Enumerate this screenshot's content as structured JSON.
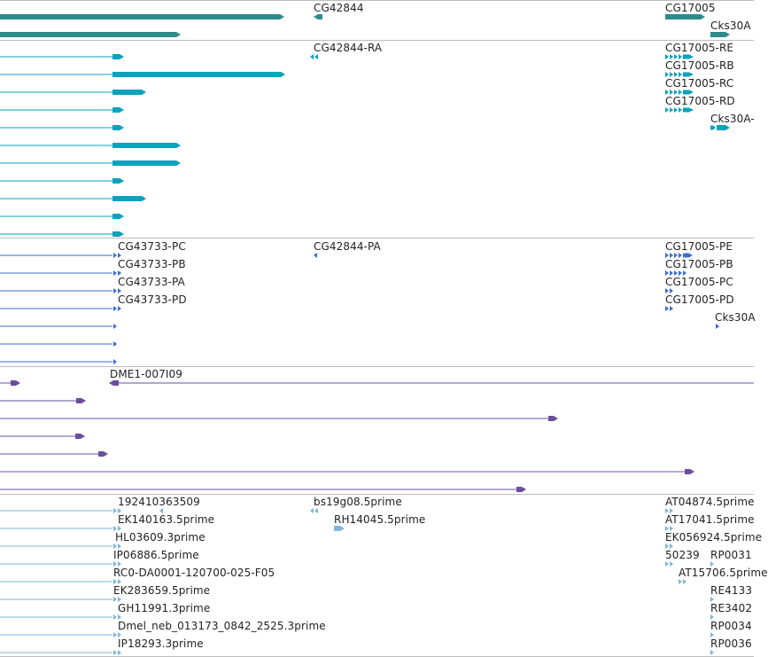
{
  "browser": {
    "tracks": [
      {
        "id": "gene",
        "color": "#2e8b8b",
        "labels": [
          {
            "key": "cg42844",
            "text": "CG42844"
          },
          {
            "key": "cg17005",
            "text": "CG17005"
          },
          {
            "key": "cks30a",
            "text": "Cks30A"
          }
        ]
      },
      {
        "id": "transcript",
        "color": "#0aa2bd",
        "labels": [
          {
            "key": "cg42844_ra",
            "text": "CG42844-RA"
          },
          {
            "key": "cg17005_re",
            "text": "CG17005-RE"
          },
          {
            "key": "cg17005_rb",
            "text": "CG17005-RB"
          },
          {
            "key": "cg17005_rc",
            "text": "CG17005-RC"
          },
          {
            "key": "cg17005_rd",
            "text": "CG17005-RD"
          },
          {
            "key": "cks30a_r",
            "text": "Cks30A-"
          }
        ]
      },
      {
        "id": "protein",
        "color": "#3a6ccf",
        "labels": [
          {
            "key": "cg43733_pc",
            "text": "CG43733-PC"
          },
          {
            "key": "cg42844_pa",
            "text": "CG42844-PA"
          },
          {
            "key": "cg17005_pe",
            "text": "CG17005-PE"
          },
          {
            "key": "cg43733_pb",
            "text": "CG43733-PB"
          },
          {
            "key": "cg17005_pb",
            "text": "CG17005-PB"
          },
          {
            "key": "cg43733_pa",
            "text": "CG43733-PA"
          },
          {
            "key": "cg17005_pc",
            "text": "CG17005-PC"
          },
          {
            "key": "cg43733_pd",
            "text": "CG43733-PD"
          },
          {
            "key": "cg17005_pd",
            "text": "CG17005-PD"
          },
          {
            "key": "cks30a_p",
            "text": "Cks30A"
          }
        ]
      },
      {
        "id": "clone",
        "color": "#6a4fa0",
        "labels": [
          {
            "key": "dme1",
            "text": "DME1-007I09"
          }
        ]
      },
      {
        "id": "est",
        "color": "#7fb6d8",
        "labels": [
          {
            "key": "e1",
            "text": "192410363509"
          },
          {
            "key": "e2",
            "text": "bs19g08.5prime"
          },
          {
            "key": "e3",
            "text": "AT04874.5prime"
          },
          {
            "key": "e4",
            "text": "EK140163.5prime"
          },
          {
            "key": "e5",
            "text": "RH14045.5prime"
          },
          {
            "key": "e6",
            "text": "AT17041.5prime"
          },
          {
            "key": "e7",
            "text": "HL03609.3prime"
          },
          {
            "key": "e8",
            "text": "EK056924.5prime"
          },
          {
            "key": "e9",
            "text": "IP06886.5prime"
          },
          {
            "key": "e10",
            "text": "50239"
          },
          {
            "key": "e11",
            "text": "RP0031"
          },
          {
            "key": "e12",
            "text": "RC0-DA0001-120700-025-F05"
          },
          {
            "key": "e13",
            "text": "AT15706.5prime"
          },
          {
            "key": "e14",
            "text": "EK283659.5prime"
          },
          {
            "key": "e15",
            "text": "RE4133"
          },
          {
            "key": "e16",
            "text": "GH11991.3prime"
          },
          {
            "key": "e17",
            "text": "RE3402"
          },
          {
            "key": "e18",
            "text": "Dmel_neb_013173_0842_2525.3prime"
          },
          {
            "key": "e19",
            "text": "RP0034"
          },
          {
            "key": "e20",
            "text": "IP18293.3prime"
          },
          {
            "key": "e21",
            "text": "RP0036"
          }
        ]
      }
    ]
  }
}
